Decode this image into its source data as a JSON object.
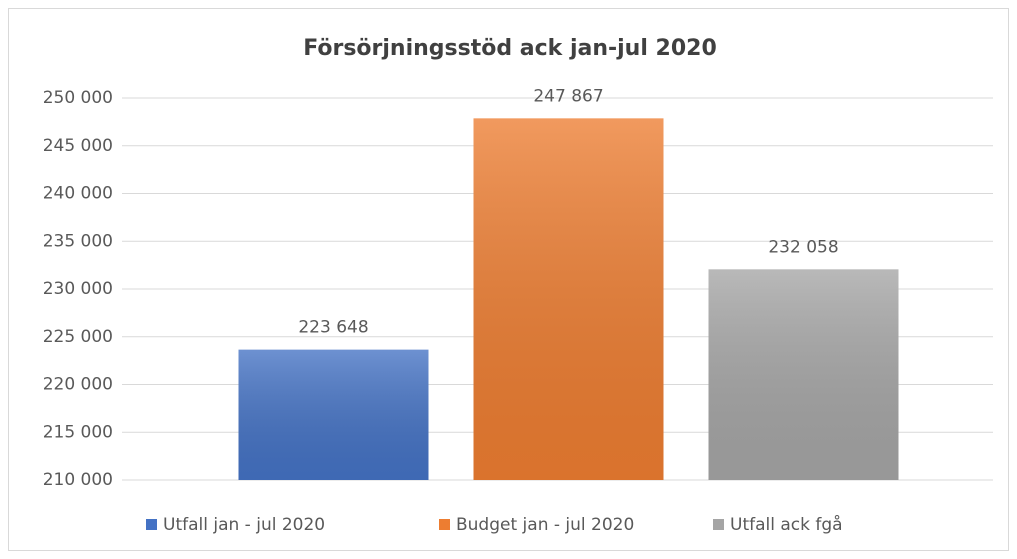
{
  "chart_data": {
    "type": "bar",
    "title": "Försörjningsstöd ack jan-jul 2020",
    "series": [
      {
        "name": "Utfall jan - jul 2020",
        "color": "#4472c4",
        "values": [
          223648
        ],
        "value_labels": [
          "223 648"
        ]
      },
      {
        "name": "Budget jan - jul 2020",
        "color": "#ed7d31",
        "values": [
          247867
        ],
        "value_labels": [
          "247 867"
        ]
      },
      {
        "name": "Utfall ack fgå",
        "color": "#a5a5a5",
        "values": [
          232058
        ],
        "value_labels": [
          "232 058"
        ]
      }
    ],
    "ylim": [
      210000,
      250000
    ],
    "yticks": [
      {
        "value": 210000,
        "label": "210 000"
      },
      {
        "value": 215000,
        "label": "215 000"
      },
      {
        "value": 220000,
        "label": "220 000"
      },
      {
        "value": 225000,
        "label": "225 000"
      },
      {
        "value": 230000,
        "label": "230 000"
      },
      {
        "value": 235000,
        "label": "235 000"
      },
      {
        "value": 240000,
        "label": "240 000"
      },
      {
        "value": 245000,
        "label": "245 000"
      },
      {
        "value": 250000,
        "label": "250 000"
      }
    ],
    "grid": true,
    "legend": "bottom"
  }
}
